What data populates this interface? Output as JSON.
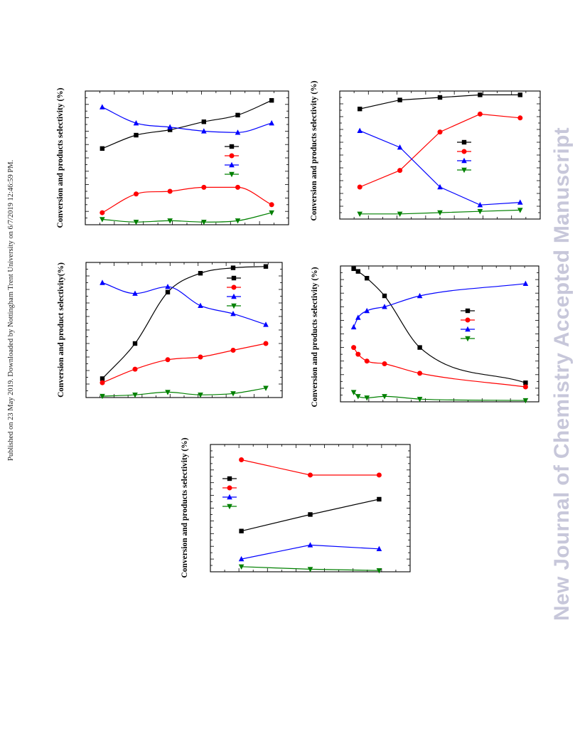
{
  "side_note": "Published on 23 May 2019. Downloaded by Nottingham Trent University on 6/7/2019 12:46:59 PM.",
  "watermark": "New Journal of Chemistry Accepted Manuscript",
  "colors": {
    "series1": "#000000",
    "series2": "#ff0000",
    "series3": "#0000ff",
    "series4": "#008000",
    "watermark": "#c7c7da"
  },
  "chart_data": [
    {
      "type": "line",
      "panel": "top-left",
      "ylabel": "Conversion and products selectivity (%)",
      "x": [
        1,
        2,
        3,
        4,
        5,
        6
      ],
      "xlim": [
        0.5,
        6.5
      ],
      "ylim": [
        0,
        100
      ],
      "legend": {
        "placement": "center-right",
        "markers": [
          "square",
          "circle",
          "triangle-up",
          "triangle-down"
        ]
      },
      "series": [
        {
          "marker": "square",
          "color": "#000000",
          "values": [
            57,
            67,
            71,
            77,
            82,
            93
          ],
          "smooth": true
        },
        {
          "marker": "circle",
          "color": "#ff0000",
          "values": [
            9,
            23,
            25,
            28,
            28,
            15
          ],
          "smooth": true
        },
        {
          "marker": "triangle-up",
          "color": "#0000ff",
          "values": [
            88,
            76,
            73,
            70,
            69,
            76
          ],
          "smooth": true
        },
        {
          "marker": "triangle-down",
          "color": "#008000",
          "values": [
            4,
            2,
            3,
            2,
            3,
            9
          ],
          "smooth": true
        }
      ]
    },
    {
      "type": "line",
      "panel": "top-right",
      "ylabel": "Conversion and products selectivity (%)",
      "x": [
        1,
        2,
        3,
        4,
        5
      ],
      "xlim": [
        0.5,
        5.5
      ],
      "ylim": [
        0,
        100
      ],
      "legend": {
        "placement": "center-right",
        "markers": [
          "square",
          "circle",
          "triangle-up",
          "triangle-down"
        ]
      },
      "series": [
        {
          "marker": "square",
          "color": "#000000",
          "values": [
            86,
            93,
            95,
            97,
            97
          ],
          "smooth": false
        },
        {
          "marker": "circle",
          "color": "#ff0000",
          "values": [
            25,
            38,
            68,
            82,
            79
          ],
          "smooth": false
        },
        {
          "marker": "triangle-up",
          "color": "#0000ff",
          "values": [
            69,
            56,
            25,
            11,
            13
          ],
          "smooth": false
        },
        {
          "marker": "triangle-down",
          "color": "#008000",
          "values": [
            4,
            4,
            5,
            6,
            7
          ],
          "smooth": false
        }
      ]
    },
    {
      "type": "line",
      "panel": "middle-left",
      "ylabel": "Conversion and product selectivity(%)",
      "x": [
        1,
        2,
        3,
        4,
        5,
        6
      ],
      "xlim": [
        0.5,
        6.5
      ],
      "ylim": [
        0,
        100
      ],
      "legend": {
        "placement": "top-right",
        "markers": [
          "square",
          "circle",
          "triangle-up",
          "triangle-down"
        ]
      },
      "series": [
        {
          "marker": "square",
          "color": "#000000",
          "values": [
            14,
            40,
            78,
            92,
            96,
            97
          ],
          "smooth": true
        },
        {
          "marker": "circle",
          "color": "#ff0000",
          "values": [
            11,
            21,
            28,
            30,
            35,
            40
          ],
          "smooth": true
        },
        {
          "marker": "triangle-up",
          "color": "#0000ff",
          "values": [
            85,
            77,
            82,
            68,
            62,
            54
          ],
          "smooth": true
        },
        {
          "marker": "triangle-down",
          "color": "#008000",
          "values": [
            1,
            2,
            4,
            2,
            3,
            7
          ],
          "smooth": true
        }
      ]
    },
    {
      "type": "line",
      "panel": "middle-right",
      "ylabel": "Conversion and products selectivity (%)",
      "x": [
        0.5,
        1,
        2,
        4,
        8,
        20
      ],
      "xlim": [
        -1,
        21.5
      ],
      "ylim": [
        0,
        100
      ],
      "legend": {
        "placement": "top-right",
        "markers": [
          "square",
          "circle",
          "triangle-up",
          "triangle-down"
        ]
      },
      "series": [
        {
          "marker": "square",
          "color": "#000000",
          "values": [
            98,
            96,
            91,
            78,
            40,
            14
          ],
          "smooth": true
        },
        {
          "marker": "circle",
          "color": "#ff0000",
          "values": [
            40,
            35,
            30,
            28,
            21,
            11
          ],
          "smooth": true
        },
        {
          "marker": "triangle-up",
          "color": "#0000ff",
          "values": [
            55,
            62,
            67,
            70,
            78,
            87
          ],
          "smooth": true
        },
        {
          "marker": "triangle-down",
          "color": "#008000",
          "values": [
            7,
            4,
            3,
            4,
            2,
            1
          ],
          "smooth": true
        }
      ]
    },
    {
      "type": "line",
      "panel": "bottom-center",
      "ylabel": "Conversion and products selectivity (%)",
      "x": [
        1,
        2,
        3
      ],
      "xlim": [
        0.55,
        3.45
      ],
      "ylim": [
        0,
        100
      ],
      "legend": {
        "placement": "top-left",
        "markers": [
          "square",
          "circle",
          "triangle-up",
          "triangle-down"
        ]
      },
      "series": [
        {
          "marker": "square",
          "color": "#000000",
          "values": [
            32,
            45,
            57
          ],
          "smooth": false
        },
        {
          "marker": "circle",
          "color": "#ff0000",
          "values": [
            88,
            76,
            76
          ],
          "smooth": false
        },
        {
          "marker": "triangle-up",
          "color": "#0000ff",
          "values": [
            10,
            21,
            18
          ],
          "smooth": false
        },
        {
          "marker": "triangle-down",
          "color": "#008000",
          "values": [
            4,
            2,
            1
          ],
          "smooth": false
        }
      ]
    }
  ]
}
